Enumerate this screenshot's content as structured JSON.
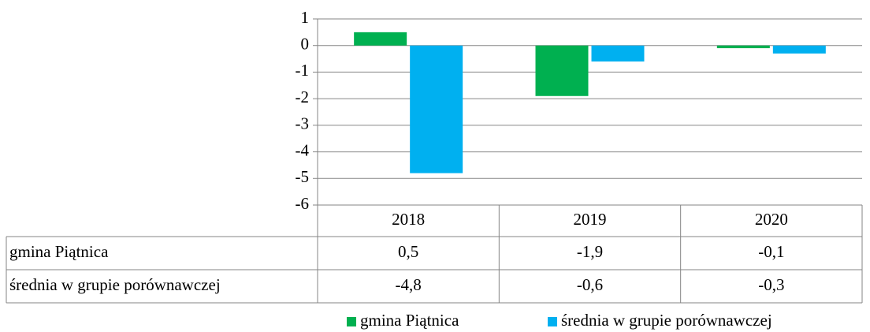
{
  "chart_data": {
    "type": "bar",
    "categories": [
      "2018",
      "2019",
      "2020"
    ],
    "series": [
      {
        "name": "gmina Piątnica",
        "color": "#00b050",
        "values": [
          0.5,
          -1.9,
          -0.1
        ],
        "value_labels": [
          "0,5",
          "-1,9",
          "-0,1"
        ]
      },
      {
        "name": "średnia w grupie porównawczej",
        "color": "#00b0f0",
        "values": [
          -4.8,
          -0.6,
          -0.3
        ],
        "value_labels": [
          "-4,8",
          "-0,6",
          "-0,3"
        ]
      }
    ],
    "ylim": [
      -6,
      1
    ],
    "yticks": [
      1,
      0,
      -1,
      -2,
      -3,
      -4,
      -5,
      -6
    ],
    "grid": true,
    "legend": "bottom"
  }
}
